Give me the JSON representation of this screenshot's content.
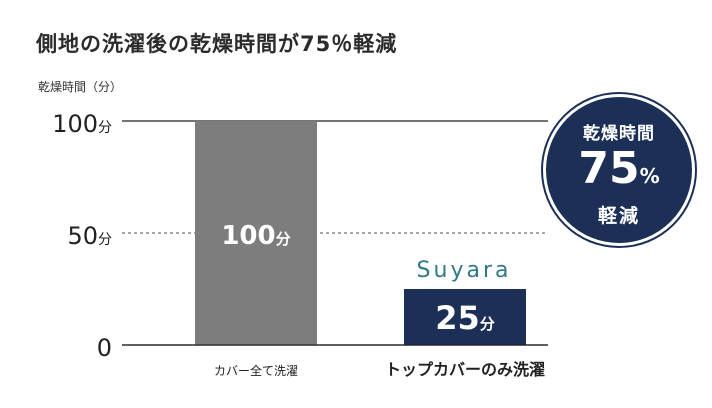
{
  "title": "側地の洗濯後の乾燥時間が75％軽減",
  "chart_data": {
    "type": "bar",
    "ylabel": "乾燥時間（分）",
    "ylim": [
      0,
      100
    ],
    "yticks": [
      {
        "value": 100,
        "num": "100",
        "unit": "分"
      },
      {
        "value": 50,
        "num": "50",
        "unit": "分"
      },
      {
        "value": 0,
        "num": "0",
        "unit": ""
      }
    ],
    "categories": [
      "カバー全て洗濯",
      "トップカバーのみ洗濯"
    ],
    "values": [
      100,
      25
    ],
    "value_labels": [
      {
        "num": "100",
        "unit": "分"
      },
      {
        "num": "25",
        "unit": "分"
      }
    ],
    "colors": [
      "#7d7d7d",
      "#1b2f57"
    ],
    "gridline_50": "dashed"
  },
  "badge": {
    "line1": "乾燥時間",
    "value": "75",
    "unit": "%",
    "line3": "軽減"
  },
  "logo": "Suyara",
  "colors": {
    "navy": "#1b2f57",
    "gray_bar": "#7d7d7d",
    "logo_teal": "#2f7a86"
  }
}
